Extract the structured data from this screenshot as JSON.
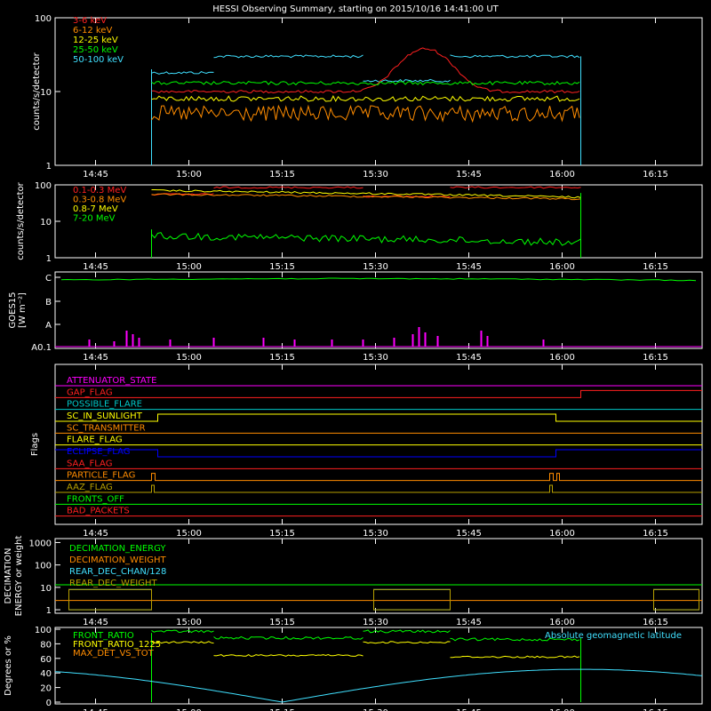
{
  "title": "HESSI Observing Summary, starting on 2015/10/16 14:41:00 UT",
  "colors": {
    "background": "#000000",
    "axes": "#ffffff",
    "red": "#ff2020",
    "orange": "#ff8c00",
    "yellow": "#ffff00",
    "green": "#00ff00",
    "cyan": "#40e0ff",
    "magenta": "#ff00ff",
    "blue": "#0000ff",
    "olive": "#b8a000",
    "teal": "#00c8c8"
  },
  "time_ticks": [
    "14:45",
    "15:00",
    "15:15",
    "15:30",
    "15:45",
    "16:00",
    "16:15"
  ],
  "chart_data": [
    {
      "id": "lc-low",
      "type": "line",
      "ylabel": "counts/s/detector",
      "yscale": "log",
      "ylim": [
        1,
        100
      ],
      "yticks": [
        "1",
        "10",
        "100"
      ],
      "data_window": [
        "14:54",
        "16:03"
      ],
      "series": [
        {
          "name": "3-6 keV",
          "color": "red"
        },
        {
          "name": "6-12 keV",
          "color": "orange"
        },
        {
          "name": "12-25 keV",
          "color": "yellow"
        },
        {
          "name": "25-50 keV",
          "color": "green"
        },
        {
          "name": "50-100 keV",
          "color": "cyan"
        }
      ]
    },
    {
      "id": "lc-high",
      "type": "line",
      "ylabel": "counts/s/detector",
      "yscale": "log",
      "ylim": [
        1,
        100
      ],
      "yticks": [
        "1",
        "10",
        "100"
      ],
      "series": [
        {
          "name": "0.1-0.3 MeV",
          "color": "red"
        },
        {
          "name": "0.3-0.8 MeV",
          "color": "orange"
        },
        {
          "name": "0.8-7 MeV",
          "color": "yellow"
        },
        {
          "name": "7-20 MeV",
          "color": "green"
        }
      ]
    },
    {
      "id": "goes",
      "type": "line",
      "ylabel": "GOES15",
      "yunits": "[W m⁻²]",
      "yticks": [
        "A0.1",
        "A",
        "B",
        "C"
      ],
      "series": [
        {
          "name": "",
          "color": "green"
        },
        {
          "name": "",
          "color": "magenta"
        }
      ]
    },
    {
      "id": "flags",
      "type": "line",
      "ylabel": "Flags",
      "series": [
        {
          "name": "ATTENUATOR_STATE",
          "color": "magenta"
        },
        {
          "name": "GAP_FLAG",
          "color": "red"
        },
        {
          "name": "POSSIBLE_FLARE",
          "color": "teal"
        },
        {
          "name": "SC_IN_SUNLIGHT",
          "color": "yellow"
        },
        {
          "name": "SC_TRANSMITTER",
          "color": "orange"
        },
        {
          "name": "FLARE_FLAG",
          "color": "yellow"
        },
        {
          "name": "ECLIPSE_FLAG",
          "color": "blue"
        },
        {
          "name": "SAA_FLAG",
          "color": "red"
        },
        {
          "name": "PARTICLE_FLAG",
          "color": "orange"
        },
        {
          "name": "AAZ_FLAG",
          "color": "olive"
        },
        {
          "name": "FRONTS_OFF",
          "color": "green"
        },
        {
          "name": "BAD_PACKETS",
          "color": "red"
        }
      ]
    },
    {
      "id": "decimation",
      "type": "line",
      "ylabel": "DECIMATION",
      "ylabel2": "ENERGY or weight",
      "yscale": "log",
      "yticks": [
        "1",
        "10",
        "100",
        "1000"
      ],
      "series": [
        {
          "name": "DECIMATION_ENERGY",
          "color": "green"
        },
        {
          "name": "DECIMATION_WEIGHT",
          "color": "orange"
        },
        {
          "name": "REAR_DEC_CHAN/128",
          "color": "cyan"
        },
        {
          "name": "REAR_DEC_WEIGHT",
          "color": "olive"
        }
      ]
    },
    {
      "id": "ratios",
      "type": "line",
      "ylabel": "Degrees or %",
      "ylim": [
        0,
        100
      ],
      "yticks": [
        "0",
        "20",
        "40",
        "60",
        "80",
        "100"
      ],
      "series": [
        {
          "name": "FRONT_RATIO",
          "color": "green"
        },
        {
          "name": "FRONT_RATIO_1225",
          "color": "yellow"
        },
        {
          "name": "MAX_DET_VS_TOT",
          "color": "orange"
        },
        {
          "name": "Absolute geomagnetic latitude",
          "color": "cyan"
        }
      ]
    }
  ]
}
